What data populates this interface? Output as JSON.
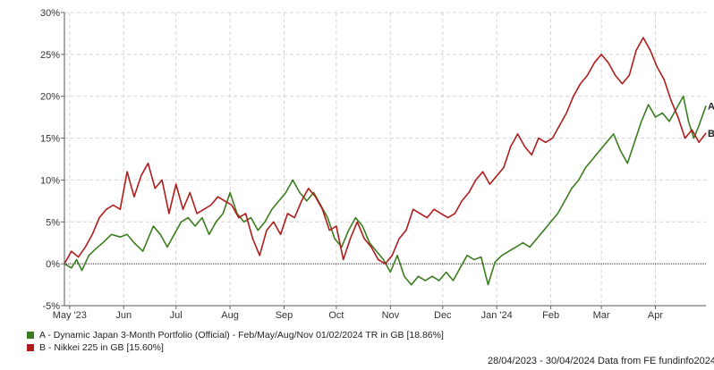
{
  "chart_data": {
    "type": "line",
    "x_range": [
      "28/04/2023",
      "30/04/2024"
    ],
    "ylim": [
      -5,
      30
    ],
    "y_ticks": [
      -5,
      0,
      5,
      10,
      15,
      20,
      25,
      30
    ],
    "y_tick_labels": [
      "-5%",
      "0%",
      "5%",
      "10%",
      "15%",
      "20%",
      "25%",
      "30%"
    ],
    "x_ticks": [
      {
        "date": "2023-05-01",
        "label": "May '23"
      },
      {
        "date": "2023-06-01",
        "label": "Jun"
      },
      {
        "date": "2023-07-01",
        "label": "Jul"
      },
      {
        "date": "2023-08-01",
        "label": "Aug"
      },
      {
        "date": "2023-09-01",
        "label": "Sep"
      },
      {
        "date": "2023-10-01",
        "label": "Oct"
      },
      {
        "date": "2023-11-01",
        "label": "Nov"
      },
      {
        "date": "2023-12-01",
        "label": "Dec"
      },
      {
        "date": "2024-01-01",
        "label": "Jan '24"
      },
      {
        "date": "2024-02-01",
        "label": "Feb"
      },
      {
        "date": "2024-03-01",
        "label": "Mar"
      },
      {
        "date": "2024-04-01",
        "label": "Apr"
      }
    ],
    "grid": true,
    "series": [
      {
        "name": "A - Dynamic Japan 3-Month Portfolio (Official) - Feb/May/Aug/Nov 01/02/2024 TR in GB [18.86%]",
        "end_label": "A",
        "color": "#3a7d1e",
        "points": [
          [
            "2023-04-28",
            0
          ],
          [
            "2023-05-02",
            -0.5
          ],
          [
            "2023-05-05",
            0.5
          ],
          [
            "2023-05-08",
            -0.8
          ],
          [
            "2023-05-12",
            1.0
          ],
          [
            "2023-05-16",
            1.8
          ],
          [
            "2023-05-20",
            2.5
          ],
          [
            "2023-05-25",
            3.5
          ],
          [
            "2023-05-30",
            3.2
          ],
          [
            "2023-06-03",
            3.5
          ],
          [
            "2023-06-07",
            2.5
          ],
          [
            "2023-06-12",
            1.5
          ],
          [
            "2023-06-15",
            3.0
          ],
          [
            "2023-06-18",
            4.5
          ],
          [
            "2023-06-22",
            3.5
          ],
          [
            "2023-06-26",
            2.0
          ],
          [
            "2023-06-30",
            3.5
          ],
          [
            "2023-07-04",
            5.0
          ],
          [
            "2023-07-08",
            5.5
          ],
          [
            "2023-07-12",
            4.5
          ],
          [
            "2023-07-16",
            5.5
          ],
          [
            "2023-07-20",
            3.5
          ],
          [
            "2023-07-24",
            5.0
          ],
          [
            "2023-07-28",
            6.0
          ],
          [
            "2023-08-01",
            8.5
          ],
          [
            "2023-08-05",
            6.0
          ],
          [
            "2023-08-09",
            5.0
          ],
          [
            "2023-08-13",
            5.5
          ],
          [
            "2023-08-17",
            4.0
          ],
          [
            "2023-08-21",
            5.0
          ],
          [
            "2023-08-25",
            6.5
          ],
          [
            "2023-08-29",
            7.5
          ],
          [
            "2023-09-02",
            8.5
          ],
          [
            "2023-09-06",
            10.0
          ],
          [
            "2023-09-10",
            8.5
          ],
          [
            "2023-09-14",
            7.5
          ],
          [
            "2023-09-18",
            8.5
          ],
          [
            "2023-09-22",
            7.0
          ],
          [
            "2023-09-26",
            5.5
          ],
          [
            "2023-09-30",
            3.0
          ],
          [
            "2023-10-04",
            2.0
          ],
          [
            "2023-10-08",
            4.0
          ],
          [
            "2023-10-12",
            5.5
          ],
          [
            "2023-10-16",
            4.5
          ],
          [
            "2023-10-20",
            2.5
          ],
          [
            "2023-10-24",
            1.5
          ],
          [
            "2023-10-28",
            0.5
          ],
          [
            "2023-11-01",
            -1.0
          ],
          [
            "2023-11-05",
            1.0
          ],
          [
            "2023-11-09",
            -1.5
          ],
          [
            "2023-11-13",
            -2.5
          ],
          [
            "2023-11-17",
            -1.5
          ],
          [
            "2023-11-21",
            -2.0
          ],
          [
            "2023-11-25",
            -1.5
          ],
          [
            "2023-11-29",
            -2.0
          ],
          [
            "2023-12-03",
            -1.0
          ],
          [
            "2023-12-07",
            -2.0
          ],
          [
            "2023-12-11",
            -0.5
          ],
          [
            "2023-12-15",
            1.0
          ],
          [
            "2023-12-19",
            0.5
          ],
          [
            "2023-12-23",
            0.8
          ],
          [
            "2023-12-27",
            -2.5
          ],
          [
            "2023-12-31",
            0.2
          ],
          [
            "2024-01-04",
            1.0
          ],
          [
            "2024-01-08",
            1.5
          ],
          [
            "2024-01-12",
            2.0
          ],
          [
            "2024-01-16",
            2.5
          ],
          [
            "2024-01-20",
            2.0
          ],
          [
            "2024-01-24",
            3.0
          ],
          [
            "2024-01-28",
            4.0
          ],
          [
            "2024-02-01",
            5.0
          ],
          [
            "2024-02-05",
            6.0
          ],
          [
            "2024-02-09",
            7.5
          ],
          [
            "2024-02-13",
            9.0
          ],
          [
            "2024-02-17",
            10.0
          ],
          [
            "2024-02-21",
            11.5
          ],
          [
            "2024-02-25",
            12.5
          ],
          [
            "2024-02-29",
            13.5
          ],
          [
            "2024-03-04",
            14.5
          ],
          [
            "2024-03-08",
            15.5
          ],
          [
            "2024-03-12",
            13.5
          ],
          [
            "2024-03-16",
            12.0
          ],
          [
            "2024-03-20",
            14.5
          ],
          [
            "2024-03-24",
            17.0
          ],
          [
            "2024-03-28",
            19.0
          ],
          [
            "2024-04-01",
            17.5
          ],
          [
            "2024-04-05",
            18.0
          ],
          [
            "2024-04-09",
            17.0
          ],
          [
            "2024-04-13",
            18.5
          ],
          [
            "2024-04-17",
            20.0
          ],
          [
            "2024-04-20",
            17.0
          ],
          [
            "2024-04-23",
            15.0
          ],
          [
            "2024-04-26",
            16.5
          ],
          [
            "2024-04-30",
            18.86
          ]
        ]
      },
      {
        "name": "B - Nikkei 225 in GB [15.60%]",
        "end_label": "B",
        "color": "#b01c1c",
        "points": [
          [
            "2023-04-28",
            0
          ],
          [
            "2023-05-02",
            1.5
          ],
          [
            "2023-05-06",
            0.8
          ],
          [
            "2023-05-10",
            2.0
          ],
          [
            "2023-05-14",
            3.5
          ],
          [
            "2023-05-18",
            5.5
          ],
          [
            "2023-05-22",
            6.5
          ],
          [
            "2023-05-26",
            7.0
          ],
          [
            "2023-05-30",
            6.5
          ],
          [
            "2023-06-03",
            11.0
          ],
          [
            "2023-06-07",
            8.0
          ],
          [
            "2023-06-11",
            10.5
          ],
          [
            "2023-06-15",
            12.0
          ],
          [
            "2023-06-19",
            9.0
          ],
          [
            "2023-06-23",
            10.0
          ],
          [
            "2023-06-27",
            6.0
          ],
          [
            "2023-07-01",
            9.5
          ],
          [
            "2023-07-05",
            6.5
          ],
          [
            "2023-07-09",
            8.5
          ],
          [
            "2023-07-13",
            6.0
          ],
          [
            "2023-07-17",
            6.5
          ],
          [
            "2023-07-21",
            7.0
          ],
          [
            "2023-07-25",
            8.0
          ],
          [
            "2023-07-29",
            7.5
          ],
          [
            "2023-08-02",
            7.0
          ],
          [
            "2023-08-06",
            5.5
          ],
          [
            "2023-08-10",
            6.0
          ],
          [
            "2023-08-14",
            3.0
          ],
          [
            "2023-08-18",
            1.0
          ],
          [
            "2023-08-22",
            4.0
          ],
          [
            "2023-08-26",
            5.0
          ],
          [
            "2023-08-30",
            3.5
          ],
          [
            "2023-09-03",
            6.0
          ],
          [
            "2023-09-07",
            5.5
          ],
          [
            "2023-09-11",
            7.5
          ],
          [
            "2023-09-15",
            9.0
          ],
          [
            "2023-09-19",
            8.0
          ],
          [
            "2023-09-23",
            6.5
          ],
          [
            "2023-09-27",
            4.0
          ],
          [
            "2023-10-01",
            4.5
          ],
          [
            "2023-10-05",
            0.5
          ],
          [
            "2023-10-09",
            3.0
          ],
          [
            "2023-10-13",
            5.0
          ],
          [
            "2023-10-17",
            3.0
          ],
          [
            "2023-10-21",
            2.0
          ],
          [
            "2023-10-25",
            0.5
          ],
          [
            "2023-10-29",
            0.0
          ],
          [
            "2023-11-02",
            1.0
          ],
          [
            "2023-11-06",
            3.0
          ],
          [
            "2023-11-10",
            4.0
          ],
          [
            "2023-11-14",
            6.5
          ],
          [
            "2023-11-18",
            6.0
          ],
          [
            "2023-11-22",
            5.5
          ],
          [
            "2023-11-26",
            6.5
          ],
          [
            "2023-11-30",
            6.0
          ],
          [
            "2023-12-04",
            5.5
          ],
          [
            "2023-12-08",
            6.0
          ],
          [
            "2023-12-12",
            7.5
          ],
          [
            "2023-12-16",
            8.5
          ],
          [
            "2023-12-20",
            10.0
          ],
          [
            "2023-12-24",
            11.0
          ],
          [
            "2023-12-28",
            9.5
          ],
          [
            "2024-01-01",
            10.5
          ],
          [
            "2024-01-05",
            11.5
          ],
          [
            "2024-01-09",
            14.0
          ],
          [
            "2024-01-13",
            15.5
          ],
          [
            "2024-01-17",
            14.0
          ],
          [
            "2024-01-21",
            13.0
          ],
          [
            "2024-01-25",
            15.0
          ],
          [
            "2024-01-29",
            14.5
          ],
          [
            "2024-02-02",
            15.0
          ],
          [
            "2024-02-06",
            16.5
          ],
          [
            "2024-02-10",
            18.0
          ],
          [
            "2024-02-14",
            20.0
          ],
          [
            "2024-02-18",
            21.5
          ],
          [
            "2024-02-22",
            22.5
          ],
          [
            "2024-02-26",
            24.0
          ],
          [
            "2024-03-01",
            25.0
          ],
          [
            "2024-03-05",
            24.0
          ],
          [
            "2024-03-09",
            22.5
          ],
          [
            "2024-03-13",
            21.5
          ],
          [
            "2024-03-17",
            22.5
          ],
          [
            "2024-03-21",
            25.5
          ],
          [
            "2024-03-25",
            27.0
          ],
          [
            "2024-03-29",
            25.5
          ],
          [
            "2024-04-02",
            23.5
          ],
          [
            "2024-04-06",
            22.0
          ],
          [
            "2024-04-10",
            19.5
          ],
          [
            "2024-04-14",
            17.5
          ],
          [
            "2024-04-18",
            15.0
          ],
          [
            "2024-04-22",
            16.0
          ],
          [
            "2024-04-26",
            14.5
          ],
          [
            "2024-04-30",
            15.6
          ]
        ]
      }
    ]
  },
  "footer": "28/04/2023 - 30/04/2024 Data from FE fundinfo2024"
}
